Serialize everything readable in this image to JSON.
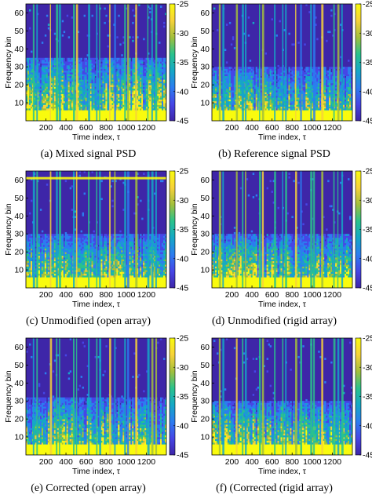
{
  "figure": {
    "colors": {
      "colormap": [
        "#3e26a8",
        "#4646e6",
        "#2c7df0",
        "#15a8c6",
        "#2ac28c",
        "#a3bf3c",
        "#f7d23a",
        "#f9fb0e"
      ],
      "background": "#3e26a8",
      "low_energy": "#4432b5",
      "axis": "#000000"
    }
  },
  "chart_data": [
    {
      "id": "a",
      "type": "heatmap",
      "caption": "(a) Mixed signal PSD",
      "xlabel": "Time index, τ",
      "ylabel": "Frequency bin",
      "xlim": [
        1,
        1400
      ],
      "ylim": [
        0,
        65
      ],
      "xticks": [
        200,
        400,
        600,
        800,
        1000,
        1200
      ],
      "yticks": [
        10,
        20,
        30,
        40,
        50,
        60
      ],
      "colorbar": {
        "range": [
          -45,
          -25
        ],
        "ticks": [
          -25,
          -30,
          -35,
          -40,
          -45
        ]
      },
      "description_level": {
        "bulk_top_bin": 35,
        "vertical_streak_density": "high",
        "extra_noise": "strong"
      }
    },
    {
      "id": "b",
      "type": "heatmap",
      "caption": "(b) Reference signal PSD",
      "xlabel": "Time index, τ",
      "ylabel": "Frequency bin",
      "xlim": [
        1,
        1400
      ],
      "ylim": [
        0,
        65
      ],
      "xticks": [
        200,
        400,
        600,
        800,
        1000,
        1200
      ],
      "yticks": [
        10,
        20,
        30,
        40,
        50,
        60
      ],
      "colorbar": {
        "range": [
          -45,
          -25
        ],
        "ticks": [
          -25,
          -30,
          -35,
          -40,
          -45
        ]
      },
      "description_level": {
        "bulk_top_bin": 30,
        "vertical_streak_density": "medium",
        "extra_noise": "weak"
      }
    },
    {
      "id": "c",
      "type": "heatmap",
      "caption": "(c) Unmodified (open array)",
      "xlabel": "Time index, τ",
      "ylabel": "Frequency bin",
      "xlim": [
        1,
        1400
      ],
      "ylim": [
        0,
        65
      ],
      "xticks": [
        200,
        400,
        600,
        800,
        1000,
        1200
      ],
      "yticks": [
        10,
        20,
        30,
        40,
        50,
        60
      ],
      "colorbar": {
        "range": [
          -45,
          -25
        ],
        "ticks": [
          -25,
          -30,
          -35,
          -40,
          -45
        ]
      },
      "description_level": {
        "bulk_top_bin": 30,
        "vertical_streak_density": "medium",
        "extra_noise": "medium",
        "horizontal_band_bin": 61
      }
    },
    {
      "id": "d",
      "type": "heatmap",
      "caption": "(d) Unmodified (rigid array)",
      "xlabel": "Time index, τ",
      "ylabel": "Frequency bin",
      "xlim": [
        1,
        1400
      ],
      "ylim": [
        0,
        65
      ],
      "xticks": [
        200,
        400,
        600,
        800,
        1000,
        1200
      ],
      "yticks": [
        10,
        20,
        30,
        40,
        50,
        60
      ],
      "colorbar": {
        "range": [
          -45,
          -25
        ],
        "ticks": [
          -25,
          -30,
          -35,
          -40,
          -45
        ]
      },
      "description_level": {
        "bulk_top_bin": 30,
        "vertical_streak_density": "medium",
        "extra_noise": "medium"
      }
    },
    {
      "id": "e",
      "type": "heatmap",
      "caption": "(e)  Corrected (open array)",
      "xlabel": "Time index, τ",
      "ylabel": "Frequency bin",
      "xlim": [
        1,
        1400
      ],
      "ylim": [
        0,
        65
      ],
      "xticks": [
        200,
        400,
        600,
        800,
        1000,
        1200
      ],
      "yticks": [
        10,
        20,
        30,
        40,
        50,
        60
      ],
      "colorbar": {
        "range": [
          -45,
          -25
        ],
        "ticks": [
          -25,
          -30,
          -35,
          -40,
          -45
        ]
      },
      "description_level": {
        "bulk_top_bin": 32,
        "vertical_streak_density": "medium",
        "extra_noise": "medium"
      }
    },
    {
      "id": "f",
      "type": "heatmap",
      "caption": "(f) (Corrected (rigid array)",
      "xlabel": "Time index, τ",
      "ylabel": "Frequency bin",
      "xlim": [
        1,
        1400
      ],
      "ylim": [
        0,
        65
      ],
      "xticks": [
        200,
        400,
        600,
        800,
        1000,
        1200
      ],
      "yticks": [
        10,
        20,
        30,
        40,
        50,
        60
      ],
      "colorbar": {
        "range": [
          -45,
          -25
        ],
        "ticks": [
          -25,
          -30,
          -35,
          -40,
          -45
        ]
      },
      "description_level": {
        "bulk_top_bin": 30,
        "vertical_streak_density": "medium",
        "extra_noise": "medium"
      }
    }
  ]
}
